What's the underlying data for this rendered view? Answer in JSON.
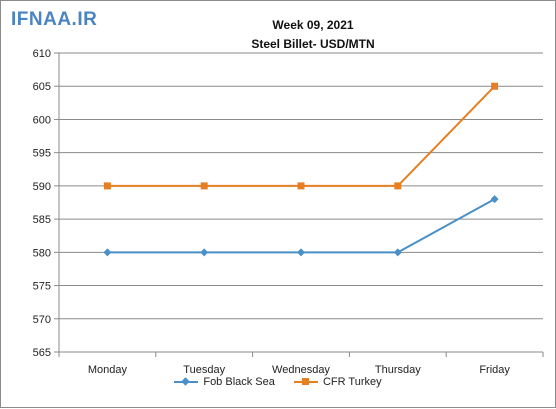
{
  "logo_text": "IFNAA.IR",
  "chart_data": {
    "type": "line",
    "title": "Week 09, 2021",
    "subtitle": "Steel Billet- USD/MTN",
    "categories": [
      "Monday",
      "Tuesday",
      "Wednesday",
      "Thursday",
      "Friday"
    ],
    "ylim": [
      565,
      610
    ],
    "ytick_step": 5,
    "grid": true,
    "legend_position": "bottom",
    "series": [
      {
        "name": "Fob Black Sea",
        "values": [
          580,
          580,
          580,
          580,
          588
        ],
        "color": "#4a90c8",
        "marker": "diamond"
      },
      {
        "name": "CFR Turkey",
        "values": [
          590,
          590,
          590,
          590,
          605
        ],
        "color": "#e67e22",
        "marker": "square"
      }
    ]
  }
}
